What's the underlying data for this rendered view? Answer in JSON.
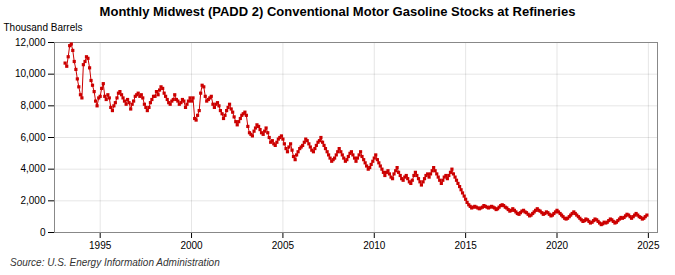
{
  "chart_data": {
    "type": "line",
    "title": "Monthly Midwest (PADD 2) Conventional Motor Gasoline Stocks at Refineries",
    "ylabel": "Thousand Barrels",
    "source": "Source: U.S. Energy Information Administration",
    "color": "#CC0000",
    "marker": "square",
    "line_style": "solid",
    "grid": true,
    "xlim": [
      1992.5,
      2025.5
    ],
    "xticks": [
      1995,
      2000,
      2005,
      2010,
      2015,
      2020,
      2025
    ],
    "ylim": [
      0,
      12000
    ],
    "yticks": [
      0,
      {
        "value": 2000,
        "label": "2,000"
      },
      {
        "value": 4000,
        "label": "4,000"
      },
      {
        "value": 6000,
        "label": "6,000"
      },
      {
        "value": 8000,
        "label": "8,000"
      },
      {
        "value": 10000,
        "label": "10,000"
      },
      {
        "value": 12000,
        "label": "12,000"
      }
    ],
    "x": [
      1993.08,
      1993.17,
      1993.25,
      1993.33,
      1993.42,
      1993.5,
      1993.58,
      1993.67,
      1993.75,
      1993.83,
      1993.92,
      1994.0,
      1994.08,
      1994.17,
      1994.25,
      1994.33,
      1994.42,
      1994.5,
      1994.58,
      1994.67,
      1994.75,
      1994.83,
      1994.92,
      1995.0,
      1995.08,
      1995.17,
      1995.25,
      1995.33,
      1995.42,
      1995.5,
      1995.58,
      1995.67,
      1995.75,
      1995.83,
      1995.92,
      1996.0,
      1996.08,
      1996.17,
      1996.25,
      1996.33,
      1996.42,
      1996.5,
      1996.58,
      1996.67,
      1996.75,
      1996.83,
      1996.92,
      1997.0,
      1997.08,
      1997.17,
      1997.25,
      1997.33,
      1997.42,
      1997.5,
      1997.58,
      1997.67,
      1997.75,
      1997.83,
      1997.92,
      1998.0,
      1998.08,
      1998.17,
      1998.25,
      1998.33,
      1998.42,
      1998.5,
      1998.58,
      1998.67,
      1998.75,
      1998.83,
      1998.92,
      1999.0,
      1999.08,
      1999.17,
      1999.25,
      1999.33,
      1999.42,
      1999.5,
      1999.58,
      1999.67,
      1999.75,
      1999.83,
      1999.92,
      2000.0,
      2000.08,
      2000.17,
      2000.25,
      2000.33,
      2000.42,
      2000.5,
      2000.58,
      2000.67,
      2000.75,
      2000.83,
      2000.92,
      2001.0,
      2001.08,
      2001.17,
      2001.25,
      2001.33,
      2001.42,
      2001.5,
      2001.58,
      2001.67,
      2001.75,
      2001.83,
      2001.92,
      2002.0,
      2002.08,
      2002.17,
      2002.25,
      2002.33,
      2002.42,
      2002.5,
      2002.58,
      2002.67,
      2002.75,
      2002.83,
      2002.92,
      2003.0,
      2003.08,
      2003.17,
      2003.25,
      2003.33,
      2003.42,
      2003.5,
      2003.58,
      2003.67,
      2003.75,
      2003.83,
      2003.92,
      2004.0,
      2004.08,
      2004.17,
      2004.25,
      2004.33,
      2004.42,
      2004.5,
      2004.58,
      2004.67,
      2004.75,
      2004.83,
      2004.92,
      2005.0,
      2005.08,
      2005.17,
      2005.25,
      2005.33,
      2005.42,
      2005.5,
      2005.58,
      2005.67,
      2005.75,
      2005.83,
      2005.92,
      2006.0,
      2006.08,
      2006.17,
      2006.25,
      2006.33,
      2006.42,
      2006.5,
      2006.58,
      2006.67,
      2006.75,
      2006.83,
      2006.92,
      2007.0,
      2007.08,
      2007.17,
      2007.25,
      2007.33,
      2007.42,
      2007.5,
      2007.58,
      2007.67,
      2007.75,
      2007.83,
      2007.92,
      2008.0,
      2008.08,
      2008.17,
      2008.25,
      2008.33,
      2008.42,
      2008.5,
      2008.58,
      2008.67,
      2008.75,
      2008.83,
      2008.92,
      2009.0,
      2009.08,
      2009.17,
      2009.25,
      2009.33,
      2009.42,
      2009.5,
      2009.58,
      2009.67,
      2009.75,
      2009.83,
      2009.92,
      2010.0,
      2010.08,
      2010.17,
      2010.25,
      2010.33,
      2010.42,
      2010.5,
      2010.58,
      2010.67,
      2010.75,
      2010.83,
      2010.92,
      2011.0,
      2011.08,
      2011.17,
      2011.25,
      2011.33,
      2011.42,
      2011.5,
      2011.58,
      2011.67,
      2011.75,
      2011.83,
      2011.92,
      2012.0,
      2012.08,
      2012.17,
      2012.25,
      2012.33,
      2012.42,
      2012.5,
      2012.58,
      2012.67,
      2012.75,
      2012.83,
      2012.92,
      2013.0,
      2013.08,
      2013.17,
      2013.25,
      2013.33,
      2013.42,
      2013.5,
      2013.58,
      2013.67,
      2013.75,
      2013.83,
      2013.92,
      2014.0,
      2014.08,
      2014.17,
      2014.25,
      2014.33,
      2014.42,
      2014.5,
      2014.58,
      2014.67,
      2014.75,
      2014.83,
      2014.92,
      2015.0,
      2015.08,
      2015.17,
      2015.25,
      2015.33,
      2015.42,
      2015.5,
      2015.58,
      2015.67,
      2015.75,
      2015.83,
      2015.92,
      2016.0,
      2016.08,
      2016.17,
      2016.25,
      2016.33,
      2016.42,
      2016.5,
      2016.58,
      2016.67,
      2016.75,
      2016.83,
      2016.92,
      2017.0,
      2017.08,
      2017.17,
      2017.25,
      2017.33,
      2017.42,
      2017.5,
      2017.58,
      2017.67,
      2017.75,
      2017.83,
      2017.92,
      2018.0,
      2018.08,
      2018.17,
      2018.25,
      2018.33,
      2018.42,
      2018.5,
      2018.58,
      2018.67,
      2018.75,
      2018.83,
      2018.92,
      2019.0,
      2019.08,
      2019.17,
      2019.25,
      2019.33,
      2019.42,
      2019.5,
      2019.58,
      2019.67,
      2019.75,
      2019.83,
      2019.92,
      2020.0,
      2020.08,
      2020.17,
      2020.25,
      2020.33,
      2020.42,
      2020.5,
      2020.58,
      2020.67,
      2020.75,
      2020.83,
      2020.92,
      2021.0,
      2021.08,
      2021.17,
      2021.25,
      2021.33,
      2021.42,
      2021.5,
      2021.58,
      2021.67,
      2021.75,
      2021.83,
      2021.92,
      2022.0,
      2022.08,
      2022.17,
      2022.25,
      2022.33,
      2022.42,
      2022.5,
      2022.58,
      2022.67,
      2022.75,
      2022.83,
      2022.92,
      2023.0,
      2023.08,
      2023.17,
      2023.25,
      2023.33,
      2023.42,
      2023.5,
      2023.58,
      2023.67,
      2023.75,
      2023.83,
      2023.92,
      2024.0,
      2024.08,
      2024.17,
      2024.25,
      2024.33,
      2024.42,
      2024.5,
      2024.58,
      2024.67,
      2024.75,
      2024.83,
      2024.92
    ],
    "values": [
      10700,
      10500,
      11100,
      11800,
      11900,
      11500,
      10800,
      10300,
      9700,
      9200,
      8700,
      8500,
      10600,
      10800,
      11100,
      11000,
      10400,
      9600,
      9300,
      8900,
      8300,
      8000,
      8500,
      8600,
      9100,
      9400,
      8600,
      8400,
      8700,
      8500,
      7900,
      7700,
      8000,
      8200,
      8500,
      8800,
      8900,
      8700,
      8500,
      8300,
      8100,
      8400,
      8200,
      7800,
      8100,
      8300,
      8600,
      8700,
      8800,
      8600,
      8700,
      8500,
      8100,
      7900,
      7700,
      7900,
      8200,
      8400,
      8600,
      8600,
      8900,
      8700,
      9000,
      9200,
      9100,
      8800,
      8600,
      8400,
      8200,
      8100,
      8300,
      8400,
      8700,
      8400,
      8300,
      8100,
      8200,
      8400,
      8300,
      7900,
      8100,
      8300,
      8500,
      8300,
      8500,
      7200,
      7100,
      7400,
      7700,
      8800,
      9300,
      9200,
      8600,
      8300,
      8400,
      8500,
      8600,
      8100,
      7900,
      8100,
      8200,
      8000,
      7700,
      7500,
      7200,
      7400,
      7700,
      7900,
      8100,
      7800,
      7600,
      7300,
      7000,
      6800,
      7000,
      7200,
      7400,
      7500,
      7600,
      7400,
      6700,
      6300,
      6200,
      6100,
      6400,
      6600,
      6800,
      6700,
      6500,
      6300,
      6200,
      6400,
      6600,
      6300,
      6000,
      5700,
      5800,
      5600,
      5500,
      5700,
      5900,
      6000,
      6100,
      5900,
      5600,
      5300,
      5100,
      5400,
      5600,
      5200,
      4800,
      4600,
      4900,
      5100,
      5300,
      5400,
      5500,
      5700,
      5900,
      5800,
      5600,
      5400,
      5200,
      5100,
      5300,
      5500,
      5700,
      5800,
      6000,
      5700,
      5500,
      5300,
      5100,
      4900,
      4700,
      4500,
      4600,
      4700,
      4900,
      5100,
      5300,
      5100,
      4900,
      4700,
      4500,
      4600,
      4800,
      5000,
      5100,
      4900,
      4700,
      4500,
      4700,
      4900,
      5100,
      4800,
      4600,
      4400,
      4200,
      4000,
      4100,
      4300,
      4500,
      4700,
      4900,
      4600,
      4400,
      4200,
      4000,
      3800,
      3600,
      3800,
      3900,
      3700,
      3500,
      3400,
      3700,
      3900,
      4100,
      3800,
      3600,
      3400,
      3300,
      3500,
      3600,
      3400,
      3200,
      3100,
      3300,
      3600,
      3800,
      3600,
      3400,
      3200,
      3000,
      3200,
      3400,
      3600,
      3700,
      3500,
      3700,
      3900,
      4100,
      3900,
      3700,
      3500,
      3300,
      3100,
      3300,
      3500,
      3600,
      3400,
      3600,
      3800,
      4000,
      3700,
      3500,
      3300,
      3100,
      2900,
      2700,
      2500,
      2300,
      2100,
      1900,
      1750,
      1650,
      1550,
      1600,
      1650,
      1600,
      1550,
      1500,
      1550,
      1600,
      1700,
      1650,
      1600,
      1550,
      1600,
      1650,
      1600,
      1550,
      1450,
      1500,
      1600,
      1700,
      1750,
      1700,
      1600,
      1550,
      1450,
      1350,
      1400,
      1500,
      1400,
      1300,
      1200,
      1150,
      1250,
      1350,
      1400,
      1300,
      1250,
      1150,
      1050,
      1100,
      1200,
      1300,
      1400,
      1500,
      1400,
      1350,
      1250,
      1150,
      1200,
      1300,
      1250,
      1150,
      1050,
      1100,
      1200,
      1300,
      1400,
      1300,
      1200,
      1100,
      1000,
      900,
      850,
      900,
      1000,
      1100,
      1200,
      1300,
      1200,
      1100,
      1000,
      900,
      800,
      700,
      750,
      850,
      800,
      700,
      600,
      650,
      750,
      850,
      800,
      700,
      600,
      500,
      550,
      650,
      600,
      650,
      750,
      850,
      800,
      700,
      600,
      650,
      750,
      850,
      950,
      900,
      950,
      1050,
      1150,
      1100,
      1000,
      900,
      1000,
      1100,
      1200,
      1100,
      1000,
      950,
      850,
      900,
      1000,
      1100
    ]
  }
}
